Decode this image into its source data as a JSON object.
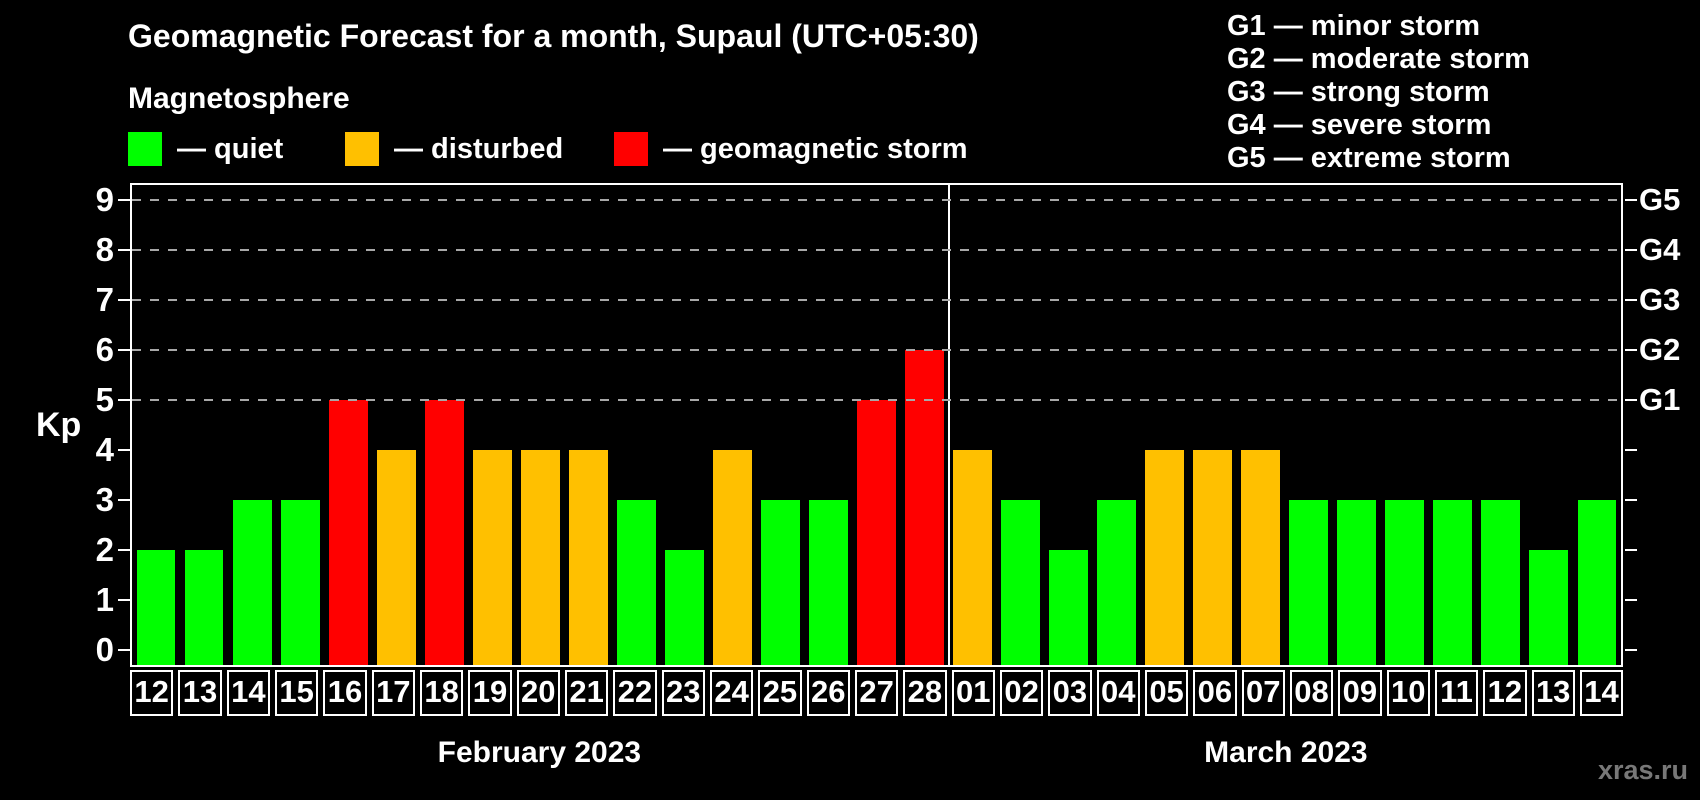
{
  "title": "Geomagnetic Forecast for a month, Supaul (UTC+05:30)",
  "subtitle": "Magnetosphere",
  "legend": [
    {
      "name": "quiet",
      "label": "— quiet",
      "color": "#00ff00"
    },
    {
      "name": "disturbed",
      "label": "— disturbed",
      "color": "#ffc000"
    },
    {
      "name": "geomagnetic-storm",
      "label": "— geomagnetic storm",
      "color": "#ff0000"
    }
  ],
  "storm_scale": [
    "G1 — minor storm",
    "G2 — moderate storm",
    "G3 — strong storm",
    "G4 — severe storm",
    "G5 — extreme storm"
  ],
  "watermark": "xras.ru",
  "chart_data": {
    "type": "bar",
    "title": "Geomagnetic Forecast for a month, Supaul (UTC+05:30)",
    "ylabel": "Kp",
    "ylim": [
      0,
      9
    ],
    "yticks": [
      0,
      1,
      2,
      3,
      4,
      5,
      6,
      7,
      8,
      9
    ],
    "gridlines_at": [
      5,
      6,
      7,
      8,
      9
    ],
    "grid": "dashed horizontal at Kp 5-9 only",
    "legend_position": "top-left",
    "right_axis_labels": [
      {
        "kp": 5,
        "label": "G1"
      },
      {
        "kp": 6,
        "label": "G2"
      },
      {
        "kp": 7,
        "label": "G3"
      },
      {
        "kp": 8,
        "label": "G4"
      },
      {
        "kp": 9,
        "label": "G5"
      }
    ],
    "colors": {
      "quiet": "#00ff00",
      "disturbed": "#ffc000",
      "storm": "#ff0000"
    },
    "months": [
      {
        "label": "February 2023",
        "days": [
          {
            "date": "12",
            "kp": 2,
            "status": "quiet"
          },
          {
            "date": "13",
            "kp": 2,
            "status": "quiet"
          },
          {
            "date": "14",
            "kp": 3,
            "status": "quiet"
          },
          {
            "date": "15",
            "kp": 3,
            "status": "quiet"
          },
          {
            "date": "16",
            "kp": 5,
            "status": "storm"
          },
          {
            "date": "17",
            "kp": 4,
            "status": "disturbed"
          },
          {
            "date": "18",
            "kp": 5,
            "status": "storm"
          },
          {
            "date": "19",
            "kp": 4,
            "status": "disturbed"
          },
          {
            "date": "20",
            "kp": 4,
            "status": "disturbed"
          },
          {
            "date": "21",
            "kp": 4,
            "status": "disturbed"
          },
          {
            "date": "22",
            "kp": 3,
            "status": "quiet"
          },
          {
            "date": "23",
            "kp": 2,
            "status": "quiet"
          },
          {
            "date": "24",
            "kp": 4,
            "status": "disturbed"
          },
          {
            "date": "25",
            "kp": 3,
            "status": "quiet"
          },
          {
            "date": "26",
            "kp": 3,
            "status": "quiet"
          },
          {
            "date": "27",
            "kp": 5,
            "status": "storm"
          },
          {
            "date": "28",
            "kp": 6,
            "status": "storm"
          }
        ]
      },
      {
        "label": "March 2023",
        "days": [
          {
            "date": "01",
            "kp": 4,
            "status": "disturbed"
          },
          {
            "date": "02",
            "kp": 3,
            "status": "quiet"
          },
          {
            "date": "03",
            "kp": 2,
            "status": "quiet"
          },
          {
            "date": "04",
            "kp": 3,
            "status": "quiet"
          },
          {
            "date": "05",
            "kp": 4,
            "status": "disturbed"
          },
          {
            "date": "06",
            "kp": 4,
            "status": "disturbed"
          },
          {
            "date": "07",
            "kp": 4,
            "status": "disturbed"
          },
          {
            "date": "08",
            "kp": 3,
            "status": "quiet"
          },
          {
            "date": "09",
            "kp": 3,
            "status": "quiet"
          },
          {
            "date": "10",
            "kp": 3,
            "status": "quiet"
          },
          {
            "date": "11",
            "kp": 3,
            "status": "quiet"
          },
          {
            "date": "12",
            "kp": 3,
            "status": "quiet"
          },
          {
            "date": "13",
            "kp": 2,
            "status": "quiet"
          },
          {
            "date": "14",
            "kp": 3,
            "status": "quiet"
          }
        ]
      }
    ]
  }
}
